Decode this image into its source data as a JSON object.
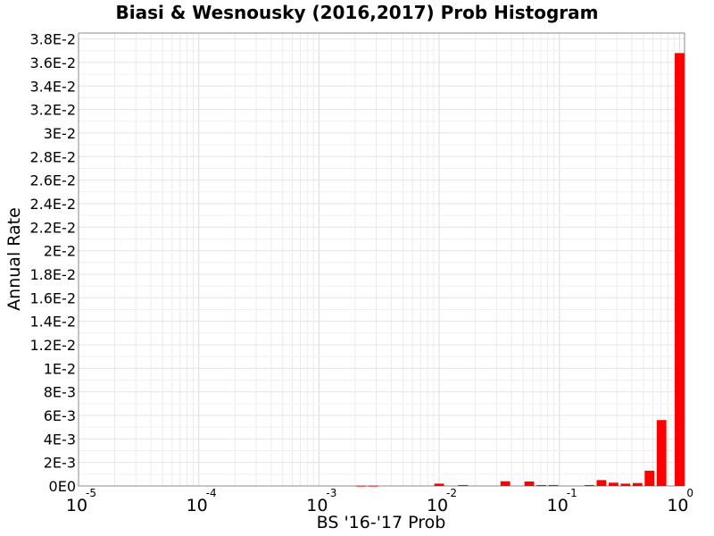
{
  "chart_data": {
    "type": "bar",
    "title": "Biasi & Wesnousky (2016,2017) Prob Histogram",
    "xlabel": "BS '16-'17 Prob",
    "ylabel": "Annual Rate",
    "x_scale": "log",
    "xlim": [
      1e-05,
      1.1
    ],
    "ylim": [
      0,
      0.0385
    ],
    "grid": true,
    "bar_color": "#ff0000",
    "x_ticks": [
      {
        "base": "10",
        "exp": "-5"
      },
      {
        "base": "10",
        "exp": "-4"
      },
      {
        "base": "10",
        "exp": "-3"
      },
      {
        "base": "10",
        "exp": "-2"
      },
      {
        "base": "10",
        "exp": "-1"
      },
      {
        "base": "10",
        "exp": "0"
      }
    ],
    "y_ticks": [
      "0E0",
      "2E-3",
      "4E-3",
      "6E-3",
      "8E-3",
      "1E-2",
      "1.2E-2",
      "1.4E-2",
      "1.6E-2",
      "1.8E-2",
      "2E-2",
      "2.2E-2",
      "2.4E-2",
      "2.6E-2",
      "2.8E-2",
      "3E-2",
      "3.2E-2",
      "3.4E-2",
      "3.6E-2",
      "3.8E-2"
    ],
    "y_tick_values": [
      0,
      0.002,
      0.004,
      0.006,
      0.008,
      0.01,
      0.012,
      0.014,
      0.016,
      0.018,
      0.02,
      0.022,
      0.024,
      0.026,
      0.028,
      0.03,
      0.032,
      0.034,
      0.036,
      0.038
    ],
    "bars": [
      {
        "x": 0.00224,
        "y": 3e-05
      },
      {
        "x": 0.00282,
        "y": 3e-05
      },
      {
        "x": 0.01,
        "y": 0.0002
      },
      {
        "x": 0.0158,
        "y": 8e-05
      },
      {
        "x": 0.0355,
        "y": 0.0004
      },
      {
        "x": 0.0562,
        "y": 0.00038
      },
      {
        "x": 0.0708,
        "y": 8e-05
      },
      {
        "x": 0.0891,
        "y": 8e-05
      },
      {
        "x": 0.178,
        "y": 8e-05
      },
      {
        "x": 0.224,
        "y": 0.0005
      },
      {
        "x": 0.282,
        "y": 0.00028
      },
      {
        "x": 0.355,
        "y": 0.0002
      },
      {
        "x": 0.447,
        "y": 0.00025
      },
      {
        "x": 0.562,
        "y": 0.0013
      },
      {
        "x": 0.708,
        "y": 0.0056
      },
      {
        "x": 1.0,
        "y": 0.0368
      }
    ]
  }
}
